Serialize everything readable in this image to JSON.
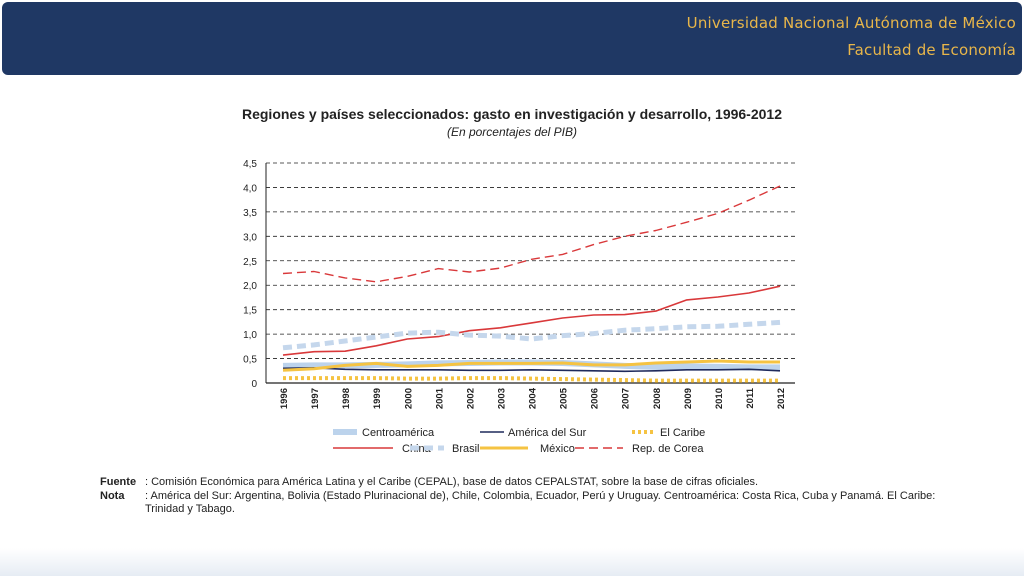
{
  "header": {
    "line1": "Universidad Nacional Autónoma de México",
    "line2": "Facultad de Economía"
  },
  "chart_data": {
    "type": "line",
    "title": "Regiones y países seleccionados: gasto en investigación y desarrollo, 1996-2012",
    "subtitle": "(En porcentajes del PIB)",
    "xlabel": "",
    "ylabel": "",
    "ylim": [
      0,
      4.5
    ],
    "yticks": [
      "0",
      "0,5",
      "1,0",
      "1,5",
      "2,0",
      "2,5",
      "3,0",
      "3,5",
      "4,0",
      "4,5"
    ],
    "grid": true,
    "legend_position": "bottom",
    "x": [
      "1996",
      "1997",
      "1998",
      "1999",
      "2000",
      "2001",
      "2002",
      "2003",
      "2004",
      "2005",
      "2006",
      "2007",
      "2008",
      "2009",
      "2010",
      "2011",
      "2012"
    ],
    "series": [
      {
        "name": "Centroamérica",
        "color": "#bcd3ec",
        "style": "thick",
        "values": [
          0.35,
          0.36,
          0.36,
          0.37,
          0.38,
          0.4,
          0.41,
          0.42,
          0.42,
          0.41,
          0.38,
          0.35,
          0.33,
          0.34,
          0.33,
          0.32,
          0.32
        ]
      },
      {
        "name": "América del Sur",
        "color": "#1f2a5c",
        "style": "solid",
        "values": [
          0.3,
          0.31,
          0.28,
          0.27,
          0.27,
          0.27,
          0.26,
          0.26,
          0.27,
          0.26,
          0.25,
          0.24,
          0.25,
          0.27,
          0.27,
          0.28,
          0.25
        ]
      },
      {
        "name": "El Caribe",
        "color": "#f5c342",
        "style": "dotted",
        "values": [
          0.1,
          0.1,
          0.1,
          0.1,
          0.09,
          0.09,
          0.1,
          0.1,
          0.09,
          0.08,
          0.07,
          0.06,
          0.05,
          0.05,
          0.05,
          0.05,
          0.05
        ]
      },
      {
        "name": "China",
        "color": "#d9383a",
        "style": "solid",
        "values": [
          0.57,
          0.64,
          0.65,
          0.76,
          0.9,
          0.95,
          1.07,
          1.13,
          1.23,
          1.33,
          1.39,
          1.4,
          1.47,
          1.7,
          1.76,
          1.84,
          1.98
        ]
      },
      {
        "name": "Brasil",
        "color": "#c5d7ec",
        "style": "dashed-thick",
        "values": [
          0.72,
          0.78,
          0.86,
          0.94,
          1.02,
          1.04,
          0.98,
          0.96,
          0.9,
          0.97,
          1.01,
          1.08,
          1.11,
          1.15,
          1.16,
          1.2,
          1.24
        ]
      },
      {
        "name": "México",
        "color": "#f5c342",
        "style": "solid-thick",
        "values": [
          0.26,
          0.29,
          0.36,
          0.4,
          0.34,
          0.36,
          0.4,
          0.4,
          0.4,
          0.41,
          0.37,
          0.37,
          0.41,
          0.43,
          0.45,
          0.43,
          0.43
        ]
      },
      {
        "name": "Rep. de Corea",
        "color": "#d9383a",
        "style": "dashed",
        "values": [
          2.24,
          2.28,
          2.15,
          2.07,
          2.18,
          2.34,
          2.27,
          2.35,
          2.53,
          2.63,
          2.83,
          3.0,
          3.12,
          3.29,
          3.47,
          3.74,
          4.03
        ]
      }
    ]
  },
  "footer": {
    "fuente_label": "Fuente",
    "fuente_text": ":  Comisión Económica para América Latina y el Caribe (CEPAL), base de datos CEPALSTAT, sobre la base de cifras oficiales.",
    "nota_label": "Nota",
    "nota_text": ":  América del Sur: Argentina, Bolivia (Estado Plurinacional de), Chile, Colombia, Ecuador, Perú y Uruguay. Centroamérica: Costa Rica, Cuba y Panamá. El Caribe: Trinidad y Tabago."
  }
}
